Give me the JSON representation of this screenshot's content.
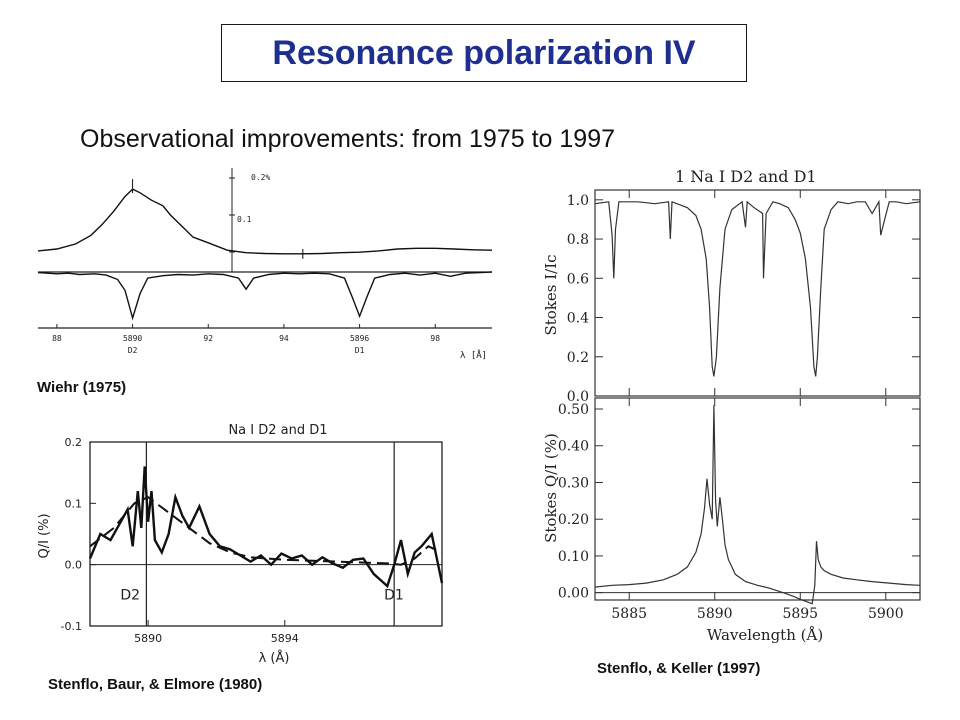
{
  "slide": {
    "title": "Resonance polarization IV",
    "subtitle": "Observational improvements: from 1975 to 1997"
  },
  "colors": {
    "title": "#1f2f8f",
    "ink": "#111111"
  },
  "chart_data": [
    {
      "type": "line",
      "caption": "Wiehr (1975)",
      "title": "",
      "x_ticks": [
        "88",
        "5890",
        "92",
        "94",
        "5896",
        "98"
      ],
      "x_tick_values": [
        5888,
        5890,
        5892,
        5894,
        5896,
        5898
      ],
      "line_labels": [
        "D2",
        "D1"
      ],
      "xlabel": "λ [Å]",
      "y_scale_ticks": [
        "0.2%",
        "0.1"
      ],
      "xlim": [
        5887.5,
        5899.5
      ],
      "series": [
        {
          "x": [
            5887.5,
            5888.0,
            5888.5,
            5888.9,
            5889.2,
            5889.5,
            5889.8,
            5890.0,
            5890.2,
            5890.5,
            5890.8,
            5891.0,
            5891.3,
            5891.6,
            5892.0,
            5892.5,
            5893.0,
            5893.5,
            5894.0,
            5894.5,
            5895.0,
            5895.5,
            5896.0,
            5896.5,
            5897.0,
            5897.5,
            5898.0,
            5898.5,
            5899.0,
            5899.5
          ],
          "y": [
            0.003,
            0.008,
            0.022,
            0.045,
            0.075,
            0.11,
            0.15,
            0.17,
            0.16,
            0.14,
            0.125,
            0.1,
            0.07,
            0.04,
            0.025,
            0.005,
            -0.002,
            -0.004,
            -0.005,
            -0.005,
            -0.004,
            -0.002,
            -0.0005,
            0.003,
            0.008,
            0.01,
            0.01,
            0.008,
            0.006,
            0.005
          ]
        },
        {
          "x": [
            5887.5,
            5888.0,
            5888.3,
            5888.6,
            5889.0,
            5889.3,
            5889.6,
            5889.8,
            5890.0,
            5890.2,
            5890.4,
            5890.8,
            5891.2,
            5891.6,
            5892.0,
            5892.4,
            5892.8,
            5893.0,
            5893.2,
            5893.6,
            5894.0,
            5894.4,
            5894.8,
            5895.2,
            5895.6,
            5895.8,
            5896.0,
            5896.2,
            5896.4,
            5896.8,
            5897.2,
            5897.6,
            5898.0,
            5898.4,
            5898.8,
            5899.2,
            5899.5
          ],
          "y": [
            -0.01,
            -0.03,
            -0.02,
            -0.04,
            -0.03,
            -0.05,
            -0.12,
            -0.3,
            -0.75,
            -0.35,
            -0.1,
            -0.06,
            -0.04,
            -0.05,
            -0.03,
            -0.04,
            -0.1,
            -0.28,
            -0.1,
            -0.04,
            -0.02,
            -0.03,
            -0.02,
            -0.03,
            -0.1,
            -0.4,
            -0.72,
            -0.4,
            -0.1,
            -0.04,
            -0.02,
            -0.05,
            -0.02,
            -0.07,
            -0.02,
            -0.01,
            0
          ]
        }
      ]
    },
    {
      "type": "line",
      "caption": "Stenflo, Baur, & Elmore (1980)",
      "title": "Na I D2 and D1",
      "xlabel": "λ (Å)",
      "ylabel": "Q/I (%)",
      "x_ticks": [
        "5890",
        "5894"
      ],
      "x_tick_values": [
        5890,
        5894
      ],
      "y_ticks": [
        "0.2",
        "0.1",
        "0.0",
        "-0.1"
      ],
      "y_tick_values": [
        0.2,
        0.1,
        0.0,
        -0.1
      ],
      "line_labels": [
        "D2",
        "D1"
      ],
      "xlim": [
        5888.3,
        5898.6
      ],
      "ylim": [
        -0.1,
        0.2
      ],
      "series": [
        {
          "x": [
            5888.3,
            5888.6,
            5888.9,
            5889.2,
            5889.4,
            5889.55,
            5889.7,
            5889.8,
            5889.9,
            5890.0,
            5890.1,
            5890.2,
            5890.4,
            5890.6,
            5890.8,
            5891.0,
            5891.2,
            5891.5,
            5891.8,
            5892.1,
            5892.4,
            5892.7,
            5893.0,
            5893.3,
            5893.6,
            5893.9,
            5894.2,
            5894.5,
            5894.8,
            5895.1,
            5895.4,
            5895.7,
            5896.0,
            5896.3,
            5896.6,
            5896.8,
            5897.0,
            5897.2,
            5897.4,
            5897.6,
            5897.8,
            5898.0,
            5898.3,
            5898.6
          ],
          "y": [
            0.01,
            0.05,
            0.04,
            0.07,
            0.09,
            0.03,
            0.12,
            0.06,
            0.16,
            0.07,
            0.12,
            0.04,
            0.02,
            0.05,
            0.11,
            0.08,
            0.06,
            0.095,
            0.05,
            0.03,
            0.025,
            0.015,
            0.005,
            0.015,
            0.0,
            0.018,
            0.01,
            0.015,
            0.0,
            0.012,
            0.002,
            -0.005,
            0.008,
            0.01,
            -0.015,
            -0.025,
            -0.035,
            0.0,
            0.04,
            -0.015,
            0.02,
            0.03,
            0.05,
            -0.03
          ]
        },
        {
          "x": [
            5888.3,
            5889.0,
            5889.6,
            5890.0,
            5890.6,
            5891.2,
            5891.8,
            5892.4,
            5893.0,
            5894.0,
            5895.0,
            5896.0,
            5897.0,
            5897.4,
            5897.8,
            5898.2,
            5898.6
          ],
          "y": [
            0.03,
            0.06,
            0.1,
            0.11,
            0.085,
            0.06,
            0.035,
            0.02,
            0.012,
            0.008,
            0.006,
            0.004,
            0.002,
            0.0,
            0.01,
            0.03,
            0.02
          ]
        }
      ]
    },
    {
      "type": "line",
      "caption": "Stenflo, & Keller (1997)",
      "title": "1 Na I D2 and D1",
      "xlabel": "Wavelength (Å)",
      "x_ticks": [
        "5885",
        "5890",
        "5895",
        "5900"
      ],
      "x_tick_values": [
        5885,
        5890,
        5895,
        5900
      ],
      "xlim": [
        5883,
        5902
      ],
      "panels": [
        {
          "ylabel": "Stokes I/Ic",
          "y_ticks": [
            "0.0",
            "0.2",
            "0.4",
            "0.6",
            "0.8",
            "1.0"
          ],
          "y_tick_values": [
            0,
            0.2,
            0.4,
            0.6,
            0.8,
            1.0
          ],
          "ylim": [
            0,
            1.05
          ],
          "series": [
            {
              "x": [
                5883,
                5883.8,
                5884.0,
                5884.1,
                5884.2,
                5884.4,
                5885.5,
                5886.5,
                5887.3,
                5887.4,
                5887.5,
                5888.4,
                5888.9,
                5889.2,
                5889.5,
                5889.7,
                5889.85,
                5889.95,
                5890.1,
                5890.3,
                5890.6,
                5891.0,
                5891.6,
                5891.8,
                5891.9,
                5892.3,
                5892.8,
                5892.85,
                5893.0,
                5893.4,
                5893.8,
                5894.3,
                5894.7,
                5895.0,
                5895.3,
                5895.6,
                5895.8,
                5895.9,
                5896.0,
                5896.2,
                5896.4,
                5896.8,
                5897.2,
                5897.8,
                5898.3,
                5898.8,
                5899.2,
                5899.6,
                5899.7,
                5900.2,
                5900.6,
                5901.2,
                5902
              ],
              "y": [
                0.98,
                0.99,
                0.82,
                0.6,
                0.85,
                0.99,
                0.99,
                0.98,
                0.99,
                0.8,
                0.99,
                0.96,
                0.92,
                0.85,
                0.7,
                0.45,
                0.15,
                0.1,
                0.2,
                0.55,
                0.85,
                0.95,
                0.99,
                0.86,
                0.99,
                0.96,
                0.93,
                0.6,
                0.93,
                0.99,
                0.98,
                0.96,
                0.9,
                0.83,
                0.7,
                0.45,
                0.15,
                0.1,
                0.2,
                0.55,
                0.85,
                0.95,
                0.99,
                0.98,
                0.99,
                0.99,
                0.93,
                0.99,
                0.82,
                0.99,
                0.99,
                0.98,
                0.99
              ]
            }
          ]
        },
        {
          "ylabel": "Stokes Q/I (%)",
          "y_ticks": [
            "0.00",
            "0.10",
            "0.20",
            "0.30",
            "0.40",
            "0.50"
          ],
          "y_tick_values": [
            0,
            0.1,
            0.2,
            0.3,
            0.4,
            0.5
          ],
          "ylim": [
            -0.02,
            0.53
          ],
          "series": [
            {
              "x": [
                5883,
                5884,
                5885,
                5886,
                5887,
                5887.8,
                5888.4,
                5888.9,
                5889.2,
                5889.4,
                5889.55,
                5889.7,
                5889.85,
                5889.95,
                5890.05,
                5890.15,
                5890.3,
                5890.45,
                5890.6,
                5890.8,
                5891.2,
                5891.8,
                5892.5,
                5893.2,
                5894.0,
                5894.6,
                5895.0,
                5895.4,
                5895.7,
                5895.85,
                5895.95,
                5896.05,
                5896.2,
                5896.4,
                5896.8,
                5897.5,
                5898.3,
                5899.2,
                5900.2,
                5901.2,
                5902
              ],
              "y": [
                0.015,
                0.02,
                0.022,
                0.026,
                0.035,
                0.05,
                0.07,
                0.11,
                0.16,
                0.23,
                0.31,
                0.24,
                0.2,
                0.51,
                0.25,
                0.18,
                0.26,
                0.2,
                0.13,
                0.09,
                0.05,
                0.03,
                0.02,
                0.012,
                0.0,
                -0.01,
                -0.018,
                -0.025,
                -0.03,
                0.02,
                0.14,
                0.09,
                0.07,
                0.06,
                0.05,
                0.04,
                0.035,
                0.03,
                0.026,
                0.022,
                0.02
              ]
            }
          ]
        }
      ]
    }
  ]
}
